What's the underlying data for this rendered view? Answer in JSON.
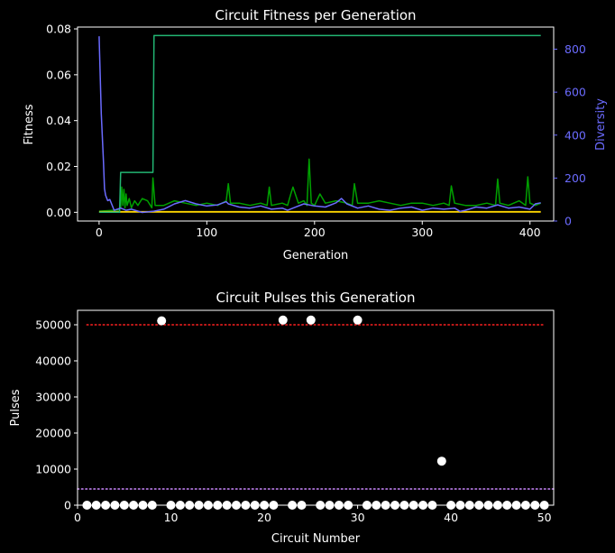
{
  "chart_data": [
    {
      "type": "line",
      "title": "Circuit Fitness per Generation",
      "xlabel": "Generation",
      "ylabel": "Fitness",
      "y2label": "Diversity",
      "xlim": [
        -20,
        422
      ],
      "ylim": [
        -0.0038,
        0.0808
      ],
      "y2lim": [
        0,
        903
      ],
      "xticks": [
        "0",
        "100",
        "200",
        "300",
        "400"
      ],
      "yticks": [
        "0.00",
        "0.02",
        "0.04",
        "0.06",
        "0.08"
      ],
      "y2ticks": [
        "0",
        "200",
        "400",
        "600",
        "800"
      ],
      "grid": false,
      "colors": {
        "best": "#22b573",
        "mean": "#00a000",
        "min": "#ffd700",
        "diversity": "#6b6bff",
        "background": "#000000",
        "axes": "#ffffff"
      },
      "series": [
        {
          "key": "best",
          "axis": "left",
          "x": [
            0,
            19,
            20,
            50,
            51,
            410
          ],
          "values": [
            0.0,
            0.0,
            0.0174,
            0.0174,
            0.0771,
            0.0771
          ]
        },
        {
          "key": "mean",
          "axis": "left",
          "x": [
            0,
            18,
            20,
            21,
            22,
            23,
            24,
            25,
            26,
            28,
            30,
            33,
            36,
            40,
            45,
            49,
            50,
            52,
            60,
            70,
            80,
            90,
            100,
            110,
            118,
            120,
            122,
            130,
            140,
            150,
            156,
            158,
            160,
            170,
            175,
            178,
            180,
            185,
            190,
            193,
            195,
            197,
            200,
            205,
            210,
            220,
            230,
            235,
            237,
            240,
            250,
            260,
            270,
            280,
            290,
            300,
            310,
            320,
            325,
            327,
            330,
            340,
            350,
            360,
            368,
            370,
            372,
            380,
            390,
            396,
            398,
            400,
            405,
            410
          ],
          "values": [
            0.0005,
            0.001,
            0.002,
            0.011,
            0.003,
            0.01,
            0.002,
            0.008,
            0.003,
            0.006,
            0.002,
            0.005,
            0.003,
            0.006,
            0.005,
            0.002,
            0.015,
            0.003,
            0.003,
            0.005,
            0.004,
            0.003,
            0.004,
            0.003,
            0.005,
            0.0125,
            0.004,
            0.004,
            0.003,
            0.004,
            0.003,
            0.011,
            0.003,
            0.004,
            0.003,
            0.008,
            0.011,
            0.004,
            0.005,
            0.003,
            0.0232,
            0.004,
            0.003,
            0.008,
            0.004,
            0.005,
            0.004,
            0.003,
            0.0125,
            0.004,
            0.004,
            0.005,
            0.004,
            0.003,
            0.004,
            0.004,
            0.003,
            0.004,
            0.003,
            0.0115,
            0.004,
            0.003,
            0.003,
            0.004,
            0.003,
            0.0145,
            0.004,
            0.003,
            0.005,
            0.003,
            0.0155,
            0.004,
            0.003,
            0.004
          ]
        },
        {
          "key": "min",
          "axis": "left",
          "x": [
            0,
            410
          ],
          "values": [
            0.0002,
            0.0002
          ]
        },
        {
          "key": "diversity",
          "axis": "right",
          "x": [
            0,
            2,
            4,
            5,
            6,
            8,
            10,
            14,
            20,
            25,
            30,
            40,
            50,
            60,
            70,
            80,
            90,
            100,
            110,
            118,
            120,
            130,
            140,
            150,
            160,
            170,
            175,
            180,
            190,
            200,
            210,
            220,
            225,
            230,
            240,
            250,
            260,
            270,
            280,
            290,
            300,
            310,
            320,
            330,
            335,
            340,
            350,
            360,
            370,
            380,
            390,
            400,
            405,
            410
          ],
          "values": [
            860,
            500,
            280,
            150,
            120,
            95,
            100,
            50,
            60,
            50,
            55,
            40,
            45,
            55,
            80,
            95,
            80,
            70,
            75,
            90,
            80,
            65,
            60,
            70,
            55,
            60,
            50,
            60,
            80,
            70,
            65,
            85,
            105,
            80,
            60,
            70,
            55,
            50,
            60,
            65,
            50,
            60,
            55,
            60,
            45,
            50,
            65,
            60,
            75,
            60,
            65,
            55,
            80,
            85
          ]
        }
      ]
    },
    {
      "type": "scatter",
      "title": "Circuit Pulses this Generation",
      "xlabel": "Circuit Number",
      "ylabel": "Pulses",
      "xlim": [
        0,
        51
      ],
      "ylim": [
        0,
        54000
      ],
      "xticks": [
        "0",
        "10",
        "20",
        "30",
        "40",
        "50"
      ],
      "yticks": [
        "0",
        "10000",
        "20000",
        "30000",
        "40000",
        "50000"
      ],
      "grid": false,
      "reference_lines": [
        {
          "y": 50000,
          "color": "#ff2020",
          "style": "dotted",
          "x": [
            1,
            50
          ]
        },
        {
          "y": 4500,
          "color": "#cc88ff",
          "style": "dotted",
          "x": [
            0,
            51
          ]
        }
      ],
      "points": {
        "x": [
          1,
          2,
          3,
          4,
          5,
          6,
          7,
          8,
          9,
          10,
          11,
          12,
          13,
          14,
          15,
          16,
          17,
          18,
          19,
          20,
          21,
          22,
          23,
          24,
          25,
          26,
          27,
          28,
          29,
          30,
          31,
          32,
          33,
          34,
          35,
          36,
          37,
          38,
          39,
          40,
          41,
          42,
          43,
          44,
          45,
          46,
          47,
          48,
          49,
          50
        ],
        "values": [
          0,
          0,
          0,
          0,
          0,
          0,
          0,
          0,
          51100,
          0,
          0,
          0,
          0,
          0,
          0,
          0,
          0,
          0,
          0,
          0,
          0,
          51300,
          0,
          0,
          51300,
          0,
          0,
          0,
          0,
          51300,
          0,
          0,
          0,
          0,
          0,
          0,
          0,
          0,
          12200,
          0,
          0,
          0,
          0,
          0,
          0,
          0,
          0,
          0,
          0,
          0
        ],
        "color": "#ffffff"
      }
    }
  ]
}
